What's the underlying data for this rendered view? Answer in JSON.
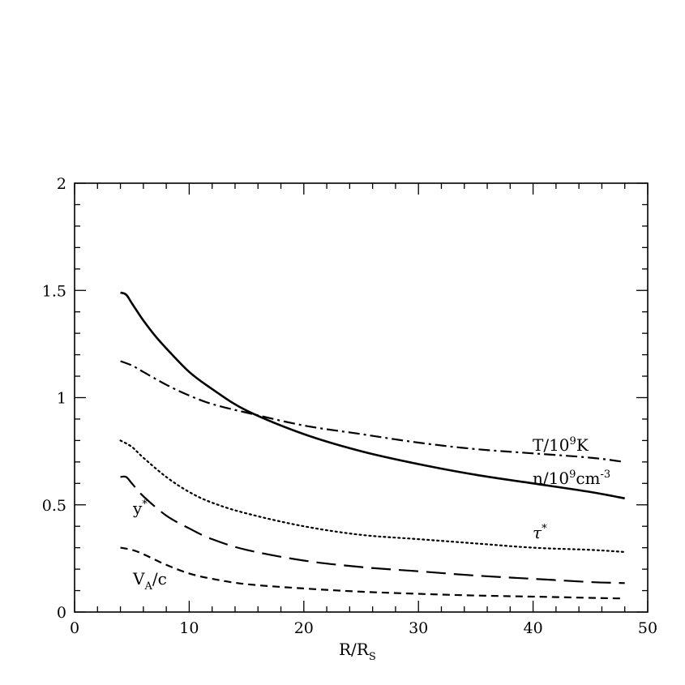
{
  "chart_data": {
    "type": "line",
    "title": "",
    "xlabel": "R/R",
    "xlabel_sub": "S",
    "ylabel": "",
    "xlim": [
      0,
      50
    ],
    "ylim": [
      0,
      2
    ],
    "x_major_ticks": [
      0,
      10,
      20,
      30,
      40,
      50
    ],
    "y_major_ticks": [
      0,
      0.5,
      1,
      1.5,
      2
    ],
    "x_tick_labels": [
      "0",
      "10",
      "20",
      "30",
      "40",
      "50"
    ],
    "y_tick_labels": [
      "0",
      "0.5",
      "1",
      "1.5",
      "2"
    ],
    "x_minor_step": 2,
    "y_minor_step": 0.1,
    "grid": false,
    "legend": "none",
    "series": [
      {
        "label_main": "n/10",
        "label_sup": "9",
        "label_tail": "cm",
        "label_tail_sup": "-3",
        "style": "solid",
        "x": [
          4,
          4.5,
          5,
          6,
          7,
          8,
          10,
          12,
          15,
          20,
          25,
          30,
          35,
          40,
          45,
          48
        ],
        "y": [
          1.49,
          1.48,
          1.44,
          1.36,
          1.29,
          1.23,
          1.12,
          1.04,
          0.94,
          0.83,
          0.75,
          0.69,
          0.64,
          0.6,
          0.56,
          0.53
        ]
      },
      {
        "label_main": "T/10",
        "label_sup": "9",
        "label_tail": "K",
        "label_tail_sup": "",
        "style": "dashdot",
        "x": [
          4,
          5,
          6,
          8,
          10,
          12,
          15,
          20,
          25,
          30,
          35,
          40,
          45,
          48
        ],
        "y": [
          1.17,
          1.15,
          1.12,
          1.06,
          1.01,
          0.97,
          0.93,
          0.87,
          0.83,
          0.79,
          0.76,
          0.74,
          0.72,
          0.7
        ]
      },
      {
        "label_main": "τ",
        "label_sup": "*",
        "label_tail": "",
        "label_tail_sup": "",
        "style": "dotted",
        "x": [
          4,
          5,
          6,
          8,
          10,
          12,
          15,
          20,
          25,
          30,
          35,
          40,
          45,
          48
        ],
        "y": [
          0.8,
          0.77,
          0.72,
          0.63,
          0.56,
          0.51,
          0.46,
          0.4,
          0.36,
          0.34,
          0.32,
          0.3,
          0.29,
          0.28
        ]
      },
      {
        "label_main": "y",
        "label_sup": "*",
        "label_tail": "",
        "label_tail_sup": "",
        "style": "longdash",
        "x": [
          4,
          4.5,
          5,
          6,
          8,
          10,
          12,
          15,
          20,
          25,
          30,
          35,
          40,
          45,
          48
        ],
        "y": [
          0.63,
          0.63,
          0.6,
          0.54,
          0.45,
          0.39,
          0.34,
          0.29,
          0.24,
          0.21,
          0.19,
          0.17,
          0.155,
          0.14,
          0.135
        ]
      },
      {
        "label_main": "V",
        "label_sub": "A",
        "label_tail": "/c",
        "label_tail_sup": "",
        "label_sup": "",
        "style": "shortdash",
        "x": [
          4,
          5,
          6,
          8,
          10,
          12,
          15,
          20,
          25,
          30,
          35,
          40,
          45,
          48
        ],
        "y": [
          0.3,
          0.29,
          0.27,
          0.22,
          0.18,
          0.155,
          0.13,
          0.11,
          0.095,
          0.085,
          0.077,
          0.072,
          0.066,
          0.063
        ]
      }
    ]
  }
}
